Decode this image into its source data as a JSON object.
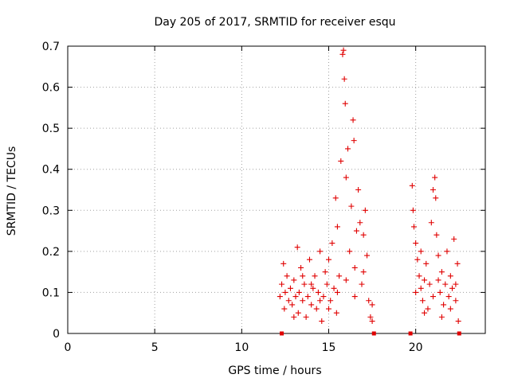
{
  "chart_data": {
    "type": "scatter",
    "title": "Day 205 of 2017, SRMTID for receiver esqu",
    "xlabel": "GPS time / hours",
    "ylabel": "SRMTID / TECUs",
    "xlim": [
      0,
      24
    ],
    "ylim": [
      0,
      0.7
    ],
    "xticks": [
      "0",
      "5",
      "10",
      "15",
      "20"
    ],
    "yticks": [
      "0",
      "0.1",
      "0.2",
      "0.3",
      "0.4",
      "0.5",
      "0.6",
      "0.7"
    ],
    "xtick_values": [
      0,
      5,
      10,
      15,
      20
    ],
    "ytick_values": [
      0,
      0.1,
      0.2,
      0.3,
      0.4,
      0.5,
      0.6,
      0.7
    ],
    "grid": true,
    "marker": "plus",
    "color": "#e00000",
    "points": [
      [
        12.2,
        0.09
      ],
      [
        12.3,
        0.12
      ],
      [
        12.4,
        0.17
      ],
      [
        12.45,
        0.06
      ],
      [
        12.5,
        0.1
      ],
      [
        12.6,
        0.14
      ],
      [
        12.7,
        0.08
      ],
      [
        12.8,
        0.11
      ],
      [
        12.9,
        0.07
      ],
      [
        13.0,
        0.13
      ],
      [
        13.1,
        0.09
      ],
      [
        13.2,
        0.21
      ],
      [
        13.25,
        0.05
      ],
      [
        13.3,
        0.1
      ],
      [
        13.4,
        0.16
      ],
      [
        13.5,
        0.08
      ],
      [
        13.6,
        0.12
      ],
      [
        13.7,
        0.04
      ],
      [
        13.8,
        0.09
      ],
      [
        13.9,
        0.18
      ],
      [
        14.0,
        0.07
      ],
      [
        14.1,
        0.11
      ],
      [
        14.2,
        0.14
      ],
      [
        14.3,
        0.06
      ],
      [
        14.4,
        0.1
      ],
      [
        14.5,
        0.2
      ],
      [
        14.6,
        0.03
      ],
      [
        14.7,
        0.09
      ],
      [
        14.8,
        0.15
      ],
      [
        14.9,
        0.12
      ],
      [
        15.0,
        0.18
      ],
      [
        15.1,
        0.08
      ],
      [
        15.2,
        0.22
      ],
      [
        15.3,
        0.11
      ],
      [
        15.4,
        0.33
      ],
      [
        15.45,
        0.05
      ],
      [
        15.5,
        0.26
      ],
      [
        15.6,
        0.14
      ],
      [
        15.7,
        0.42
      ],
      [
        15.8,
        0.68
      ],
      [
        15.85,
        0.69
      ],
      [
        15.9,
        0.62
      ],
      [
        15.95,
        0.56
      ],
      [
        16.0,
        0.38
      ],
      [
        16.1,
        0.45
      ],
      [
        16.2,
        0.2
      ],
      [
        16.3,
        0.31
      ],
      [
        16.4,
        0.52
      ],
      [
        16.45,
        0.47
      ],
      [
        16.5,
        0.16
      ],
      [
        16.6,
        0.25
      ],
      [
        16.7,
        0.35
      ],
      [
        16.8,
        0.27
      ],
      [
        16.9,
        0.12
      ],
      [
        17.0,
        0.24
      ],
      [
        17.1,
        0.3
      ],
      [
        17.2,
        0.19
      ],
      [
        17.3,
        0.08
      ],
      [
        17.4,
        0.04
      ],
      [
        17.5,
        0.07
      ],
      [
        13.0,
        0.04
      ],
      [
        13.5,
        0.14
      ],
      [
        14.0,
        0.12
      ],
      [
        14.5,
        0.08
      ],
      [
        15.0,
        0.06
      ],
      [
        15.5,
        0.1
      ],
      [
        16.0,
        0.13
      ],
      [
        16.5,
        0.09
      ],
      [
        17.0,
        0.15
      ],
      [
        17.5,
        0.03
      ],
      [
        19.8,
        0.36
      ],
      [
        19.85,
        0.3
      ],
      [
        19.9,
        0.26
      ],
      [
        20.0,
        0.22
      ],
      [
        20.1,
        0.18
      ],
      [
        20.2,
        0.14
      ],
      [
        20.3,
        0.11
      ],
      [
        20.4,
        0.08
      ],
      [
        20.5,
        0.13
      ],
      [
        20.6,
        0.17
      ],
      [
        20.7,
        0.06
      ],
      [
        20.8,
        0.12
      ],
      [
        20.9,
        0.27
      ],
      [
        21.0,
        0.35
      ],
      [
        21.1,
        0.38
      ],
      [
        21.15,
        0.33
      ],
      [
        21.2,
        0.24
      ],
      [
        21.3,
        0.19
      ],
      [
        21.4,
        0.1
      ],
      [
        21.5,
        0.15
      ],
      [
        21.6,
        0.07
      ],
      [
        21.7,
        0.12
      ],
      [
        21.8,
        0.2
      ],
      [
        21.9,
        0.09
      ],
      [
        22.0,
        0.14
      ],
      [
        22.1,
        0.11
      ],
      [
        22.2,
        0.23
      ],
      [
        22.3,
        0.08
      ],
      [
        22.4,
        0.17
      ],
      [
        22.45,
        0.03
      ],
      [
        20.0,
        0.1
      ],
      [
        20.5,
        0.05
      ],
      [
        21.0,
        0.09
      ],
      [
        21.5,
        0.04
      ],
      [
        22.0,
        0.06
      ],
      [
        20.3,
        0.2
      ],
      [
        21.3,
        0.13
      ],
      [
        22.3,
        0.12
      ]
    ],
    "zero_marks_x": [
      12.3,
      17.6,
      19.7,
      22.5
    ]
  }
}
